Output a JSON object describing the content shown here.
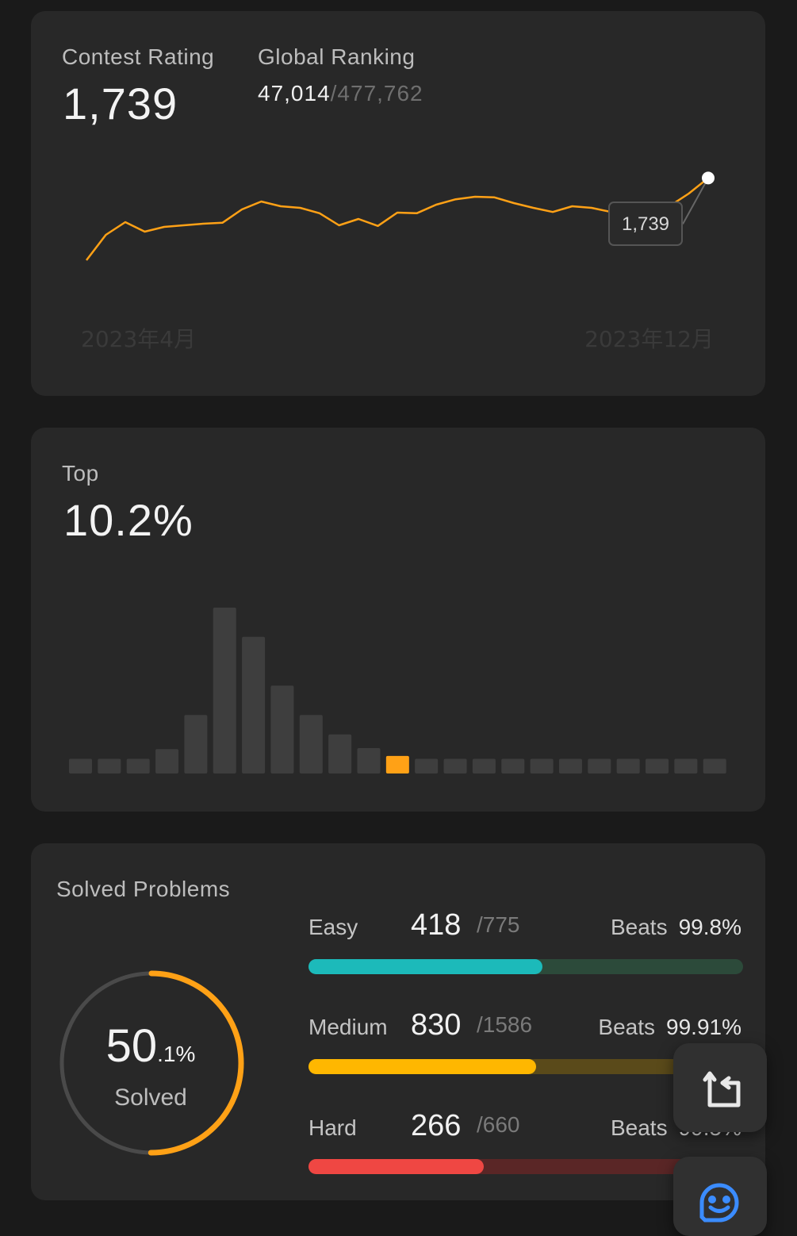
{
  "rating_card": {
    "contest_rating_label": "Contest Rating",
    "contest_rating_value": "1,739",
    "global_ranking_label": "Global Ranking",
    "global_rank": "47,014",
    "global_total": "/477,762",
    "chart_data": {
      "type": "line",
      "x_tick_labels": [
        "2023年4月",
        "2023年12月"
      ],
      "values": [
        1480,
        1560,
        1600,
        1570,
        1585,
        1590,
        1595,
        1598,
        1640,
        1665,
        1650,
        1645,
        1628,
        1590,
        1610,
        1588,
        1630,
        1628,
        1655,
        1672,
        1680,
        1678,
        1660,
        1645,
        1632,
        1650,
        1645,
        1632,
        1632,
        1632,
        1650,
        1690,
        1739
      ],
      "tooltip": "1,739",
      "color": "#ffa116"
    }
  },
  "top_card": {
    "label": "Top",
    "value": "10.2%",
    "chart_data": {
      "type": "bar",
      "values": [
        1.5,
        1.5,
        1.5,
        2.5,
        6,
        17,
        14,
        9,
        6,
        4,
        2.6,
        1.8,
        1.5,
        1.5,
        1.5,
        1.5,
        1.5,
        1.5,
        1.5,
        1.5,
        1.5,
        1.5,
        1.5
      ],
      "highlight_index": 11,
      "bar_color": "#3e3e3e",
      "highlight_color": "#ffa116"
    }
  },
  "solved_card": {
    "title": "Solved Problems",
    "ring_percent": 0.501,
    "percent_int": "50",
    "percent_dec": ".1%",
    "solved_label": "Solved",
    "difficulties": [
      {
        "label": "Easy",
        "count": "418",
        "total": "/775",
        "beats_label": "Beats",
        "beats": "99.8%",
        "fraction": 0.539,
        "color": "#1cbaba",
        "track": "#2c4a3a"
      },
      {
        "label": "Medium",
        "count": "830",
        "total": "/1586",
        "beats_label": "Beats",
        "beats": "99.91%",
        "fraction": 0.523,
        "color": "#ffb700",
        "track": "#5a4a1a"
      },
      {
        "label": "Hard",
        "count": "266",
        "total": "/660",
        "beats_label": "Beats",
        "beats": "99.5%",
        "fraction": 0.403,
        "color": "#ef4743",
        "track": "#5a2626"
      }
    ]
  },
  "floating_buttons": {
    "rotate_icon": "rotate-icon",
    "feedback_icon": "smile-chat-icon"
  }
}
